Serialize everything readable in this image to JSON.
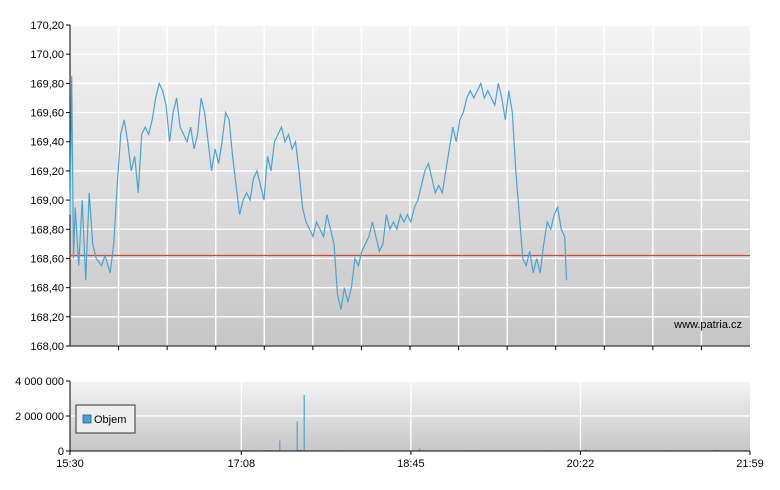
{
  "chart_data": [
    {
      "type": "line",
      "title": "",
      "watermark": "www.patria.cz",
      "y_tick_labels": [
        "170,20",
        "170,00",
        "169,80",
        "169,60",
        "169,40",
        "169,20",
        "169,00",
        "168,80",
        "168,60",
        "168,40",
        "168,20",
        "168,00"
      ],
      "ylim": [
        168.0,
        170.2
      ],
      "reference_line": 168.62,
      "grid": true,
      "colors": {
        "line": "#4aa3d4",
        "reference": "#cc4b37",
        "grid": "#ffffff",
        "background_top": "#f2f2f2",
        "background_bottom": "#c8c8c8"
      },
      "series": [
        {
          "points": [
            [
              "15:30",
              168.9
            ],
            [
              "15:31",
              169.85
            ],
            [
              "15:32",
              168.6
            ],
            [
              "15:33",
              168.95
            ],
            [
              "15:35",
              168.55
            ],
            [
              "15:37",
              169.0
            ],
            [
              "15:39",
              168.45
            ],
            [
              "15:41",
              169.05
            ],
            [
              "15:43",
              168.7
            ],
            [
              "15:45",
              168.6
            ],
            [
              "15:48",
              168.55
            ],
            [
              "15:50",
              168.62
            ],
            [
              "15:53",
              168.5
            ],
            [
              "15:55",
              168.7
            ],
            [
              "15:57",
              169.1
            ],
            [
              "15:59",
              169.45
            ],
            [
              "16:01",
              169.55
            ],
            [
              "16:03",
              169.4
            ],
            [
              "16:05",
              169.2
            ],
            [
              "16:07",
              169.3
            ],
            [
              "16:09",
              169.05
            ],
            [
              "16:11",
              169.45
            ],
            [
              "16:13",
              169.5
            ],
            [
              "16:15",
              169.45
            ],
            [
              "16:17",
              169.55
            ],
            [
              "16:19",
              169.7
            ],
            [
              "16:21",
              169.8
            ],
            [
              "16:23",
              169.75
            ],
            [
              "16:25",
              169.65
            ],
            [
              "16:27",
              169.4
            ],
            [
              "16:29",
              169.6
            ],
            [
              "16:31",
              169.7
            ],
            [
              "16:33",
              169.5
            ],
            [
              "16:35",
              169.45
            ],
            [
              "16:37",
              169.4
            ],
            [
              "16:39",
              169.5
            ],
            [
              "16:41",
              169.35
            ],
            [
              "16:43",
              169.45
            ],
            [
              "16:45",
              169.7
            ],
            [
              "16:47",
              169.6
            ],
            [
              "16:49",
              169.4
            ],
            [
              "16:51",
              169.2
            ],
            [
              "16:53",
              169.35
            ],
            [
              "16:55",
              169.25
            ],
            [
              "16:57",
              169.4
            ],
            [
              "16:59",
              169.6
            ],
            [
              "17:01",
              169.55
            ],
            [
              "17:03",
              169.3
            ],
            [
              "17:05",
              169.1
            ],
            [
              "17:07",
              168.9
            ],
            [
              "17:09",
              169.0
            ],
            [
              "17:11",
              169.05
            ],
            [
              "17:13",
              169.0
            ],
            [
              "17:15",
              169.15
            ],
            [
              "17:17",
              169.2
            ],
            [
              "17:19",
              169.1
            ],
            [
              "17:21",
              169.0
            ],
            [
              "17:23",
              169.3
            ],
            [
              "17:25",
              169.2
            ],
            [
              "17:27",
              169.4
            ],
            [
              "17:29",
              169.45
            ],
            [
              "17:31",
              169.5
            ],
            [
              "17:33",
              169.4
            ],
            [
              "17:35",
              169.45
            ],
            [
              "17:37",
              169.35
            ],
            [
              "17:39",
              169.4
            ],
            [
              "17:41",
              169.2
            ],
            [
              "17:43",
              168.95
            ],
            [
              "17:45",
              168.85
            ],
            [
              "17:47",
              168.8
            ],
            [
              "17:49",
              168.75
            ],
            [
              "17:51",
              168.85
            ],
            [
              "17:53",
              168.8
            ],
            [
              "17:55",
              168.75
            ],
            [
              "17:57",
              168.9
            ],
            [
              "17:59",
              168.8
            ],
            [
              "18:01",
              168.7
            ],
            [
              "18:03",
              168.35
            ],
            [
              "18:05",
              168.25
            ],
            [
              "18:07",
              168.4
            ],
            [
              "18:09",
              168.3
            ],
            [
              "18:11",
              168.4
            ],
            [
              "18:13",
              168.6
            ],
            [
              "18:15",
              168.55
            ],
            [
              "18:17",
              168.65
            ],
            [
              "18:19",
              168.7
            ],
            [
              "18:21",
              168.75
            ],
            [
              "18:23",
              168.85
            ],
            [
              "18:25",
              168.75
            ],
            [
              "18:27",
              168.65
            ],
            [
              "18:29",
              168.7
            ],
            [
              "18:31",
              168.9
            ],
            [
              "18:33",
              168.8
            ],
            [
              "18:35",
              168.85
            ],
            [
              "18:37",
              168.8
            ],
            [
              "18:39",
              168.9
            ],
            [
              "18:41",
              168.85
            ],
            [
              "18:43",
              168.9
            ],
            [
              "18:45",
              168.85
            ],
            [
              "18:47",
              168.95
            ],
            [
              "18:49",
              169.0
            ],
            [
              "18:51",
              169.1
            ],
            [
              "18:53",
              169.2
            ],
            [
              "18:55",
              169.25
            ],
            [
              "18:57",
              169.15
            ],
            [
              "18:59",
              169.05
            ],
            [
              "19:01",
              169.1
            ],
            [
              "19:03",
              169.05
            ],
            [
              "19:05",
              169.2
            ],
            [
              "19:07",
              169.35
            ],
            [
              "19:09",
              169.5
            ],
            [
              "19:11",
              169.4
            ],
            [
              "19:13",
              169.55
            ],
            [
              "19:15",
              169.6
            ],
            [
              "19:17",
              169.7
            ],
            [
              "19:19",
              169.75
            ],
            [
              "19:21",
              169.7
            ],
            [
              "19:23",
              169.75
            ],
            [
              "19:25",
              169.8
            ],
            [
              "19:27",
              169.7
            ],
            [
              "19:29",
              169.75
            ],
            [
              "19:31",
              169.7
            ],
            [
              "19:33",
              169.65
            ],
            [
              "19:35",
              169.8
            ],
            [
              "19:37",
              169.7
            ],
            [
              "19:39",
              169.55
            ],
            [
              "19:41",
              169.75
            ],
            [
              "19:43",
              169.6
            ],
            [
              "19:45",
              169.2
            ],
            [
              "19:47",
              168.9
            ],
            [
              "19:49",
              168.6
            ],
            [
              "19:51",
              168.55
            ],
            [
              "19:53",
              168.65
            ],
            [
              "19:55",
              168.5
            ],
            [
              "19:57",
              168.6
            ],
            [
              "19:59",
              168.5
            ],
            [
              "20:01",
              168.7
            ],
            [
              "20:03",
              168.85
            ],
            [
              "20:05",
              168.8
            ],
            [
              "20:07",
              168.9
            ],
            [
              "20:09",
              168.95
            ],
            [
              "20:11",
              168.8
            ],
            [
              "20:13",
              168.75
            ],
            [
              "20:14",
              168.45
            ]
          ]
        }
      ]
    },
    {
      "type": "bar",
      "y_tick_labels": [
        "4 000 000",
        "2 000 000",
        "0"
      ],
      "ylim": [
        0,
        4000000
      ],
      "x_tick_labels": [
        "15:30",
        "17:08",
        "18:45",
        "20:22",
        "21:59"
      ],
      "legend": {
        "label": "Objem",
        "placement": "left"
      },
      "grid": true,
      "colors": {
        "bar": "#4aa3d4",
        "legend_swatch": "#4aa3d4"
      },
      "series": [
        {
          "name": "Objem",
          "points": [
            [
              "15:45",
              15000
            ],
            [
              "16:00",
              30000
            ],
            [
              "16:15",
              20000
            ],
            [
              "16:30",
              25000
            ],
            [
              "16:45",
              18000
            ],
            [
              "17:00",
              22000
            ],
            [
              "17:15",
              40000
            ],
            [
              "17:22",
              50000
            ],
            [
              "17:30",
              600000
            ],
            [
              "17:40",
              1700000
            ],
            [
              "17:42",
              60000
            ],
            [
              "17:44",
              3200000
            ],
            [
              "17:50",
              30000
            ],
            [
              "18:05",
              40000
            ],
            [
              "18:15",
              25000
            ],
            [
              "18:30",
              20000
            ],
            [
              "18:50",
              150000
            ],
            [
              "19:05",
              30000
            ],
            [
              "19:20",
              40000
            ],
            [
              "19:35",
              25000
            ],
            [
              "19:50",
              20000
            ],
            [
              "20:05",
              35000
            ],
            [
              "20:25",
              100000
            ],
            [
              "20:40",
              30000
            ],
            [
              "20:55",
              25000
            ],
            [
              "21:10",
              40000
            ],
            [
              "21:25",
              20000
            ],
            [
              "21:40",
              60000
            ],
            [
              "21:55",
              30000
            ]
          ]
        }
      ]
    }
  ]
}
